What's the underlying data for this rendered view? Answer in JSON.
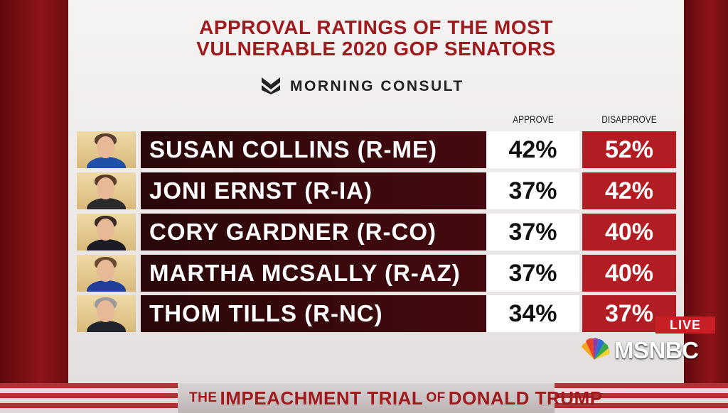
{
  "title": {
    "line1": "APPROVAL RATINGS OF THE MOST",
    "line2": "VULNERABLE 2020 GOP SENATORS"
  },
  "source": {
    "name": "MORNING CONSULT",
    "icon": "morning-consult-logo"
  },
  "columns": {
    "approve": "APPROVE",
    "disapprove": "DISAPPROVE"
  },
  "rows": [
    {
      "name": "SUSAN COLLINS (R-ME)",
      "approve": "42%",
      "disapprove": "52%",
      "hair": "#5a4030",
      "jacket": "#1f4fa8"
    },
    {
      "name": "JONI ERNST (R-IA)",
      "approve": "37%",
      "disapprove": "42%",
      "hair": "#5a3c28",
      "jacket": "#2a2a2a"
    },
    {
      "name": "CORY GARDNER (R-CO)",
      "approve": "37%",
      "disapprove": "40%",
      "hair": "#3a2a20",
      "jacket": "#1c1c24"
    },
    {
      "name": "MARTHA MCSALLY (R-AZ)",
      "approve": "37%",
      "disapprove": "40%",
      "hair": "#6b4a30",
      "jacket": "#1f3f9a"
    },
    {
      "name": "THOM TILLS (R-NC)",
      "approve": "34%",
      "disapprove": "37%",
      "hair": "#9a9a9a",
      "jacket": "#20242c"
    }
  ],
  "overlay": {
    "live": "LIVE",
    "network": "MSNBC"
  },
  "ticker": {
    "the": "THE",
    "impeachment": "IMPEACHMENT TRIAL",
    "of": "OF",
    "donald": "DONALD TRUMP"
  },
  "colors": {
    "title_red": "#9e1a1d",
    "name_bar": "#3a090c",
    "disapprove_red": "#b21d24",
    "live_red": "#c81f26"
  }
}
